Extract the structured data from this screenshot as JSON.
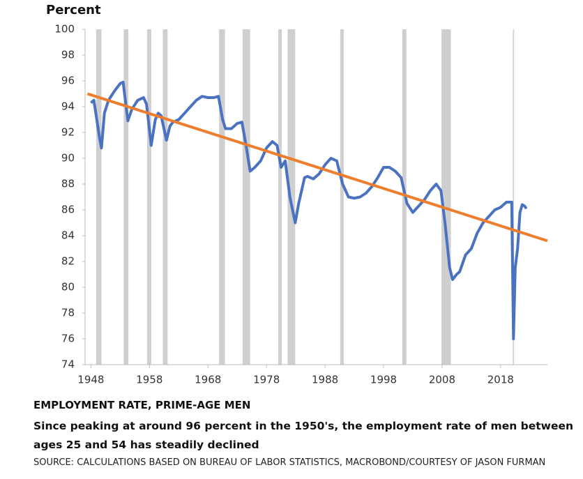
{
  "chart_data": {
    "type": "line",
    "y_axis_label": "Percent",
    "caption_title": "EMPLOYMENT RATE, PRIME-AGE MEN",
    "subtitle": "Since peaking at around 96 percent in the 1950's, the employment rate of men between ages 25 and 54 has steadily declined",
    "source": "SOURCE: CALCULATIONS BASED ON BUREAU OF LABOR STATISTICS, MACROBOND/COURTESY OF JASON FURMAN",
    "xlim": [
      1947,
      2026
    ],
    "ylim": [
      74,
      100
    ],
    "xticks": [
      1948,
      1958,
      1968,
      1978,
      1988,
      1998,
      2008,
      2018
    ],
    "yticks": [
      74,
      76,
      78,
      80,
      82,
      84,
      86,
      88,
      90,
      92,
      94,
      96,
      98,
      100
    ],
    "recession_color": "#cfcfcf",
    "recessions": [
      [
        1948.9,
        1949.8
      ],
      [
        1953.6,
        1954.4
      ],
      [
        1957.6,
        1958.3
      ],
      [
        1960.3,
        1961.1
      ],
      [
        1969.9,
        1970.9
      ],
      [
        1973.9,
        1975.2
      ],
      [
        1980.0,
        1980.6
      ],
      [
        1981.6,
        1982.9
      ],
      [
        1990.6,
        1991.2
      ],
      [
        2001.2,
        2001.9
      ],
      [
        2007.9,
        2009.5
      ],
      [
        2020.1,
        2020.3
      ]
    ],
    "series": [
      {
        "color": "#4a72c0",
        "x": [
          1948,
          1948.5,
          1949.5,
          1949.8,
          1950.3,
          1951,
          1952,
          1953,
          1953.5,
          1954.3,
          1955,
          1956,
          1957,
          1957.5,
          1958.3,
          1959,
          1959.5,
          1960,
          1960.9,
          1961.5,
          1962,
          1963,
          1964,
          1965,
          1966,
          1967,
          1968,
          1969,
          1969.8,
          1970.5,
          1971,
          1972,
          1973,
          1973.8,
          1974.5,
          1975.2,
          1976,
          1977,
          1978,
          1979,
          1979.8,
          1980.5,
          1981.2,
          1982,
          1982.9,
          1983.5,
          1984.5,
          1985,
          1986,
          1987,
          1988,
          1989,
          1990,
          1991,
          1992,
          1993,
          1994,
          1995,
          1996,
          1997,
          1998,
          1999,
          2000,
          2001,
          2002,
          2003,
          2004,
          2005,
          2006,
          2007,
          2007.8,
          2008.5,
          2009.3,
          2009.8,
          2010.5,
          2011,
          2012,
          2013,
          2014,
          2015,
          2016,
          2017,
          2018,
          2019,
          2019.9,
          2020.2,
          2020.5,
          2020.9,
          2021.3,
          2021.7,
          2022.1,
          2022.4
        ],
        "values": [
          94.3,
          94.5,
          91.5,
          90.8,
          93.5,
          94.5,
          95.2,
          95.8,
          95.9,
          92.9,
          93.8,
          94.5,
          94.7,
          94.2,
          91.0,
          93.0,
          93.5,
          93.3,
          91.4,
          92.5,
          92.8,
          93.0,
          93.5,
          94.0,
          94.5,
          94.8,
          94.7,
          94.7,
          94.8,
          93.0,
          92.3,
          92.3,
          92.7,
          92.8,
          91.0,
          89.0,
          89.3,
          89.8,
          90.8,
          91.3,
          91.0,
          89.3,
          89.8,
          87.0,
          85.0,
          86.5,
          88.5,
          88.6,
          88.4,
          88.8,
          89.5,
          90.0,
          89.8,
          88.0,
          87.0,
          86.9,
          87.0,
          87.3,
          87.8,
          88.5,
          89.3,
          89.3,
          89.0,
          88.5,
          86.5,
          85.8,
          86.3,
          86.8,
          87.5,
          88.0,
          87.5,
          85.0,
          81.5,
          80.6,
          81.0,
          81.2,
          82.5,
          83.0,
          84.2,
          85.0,
          85.5,
          86.0,
          86.2,
          86.6,
          86.6,
          76.0,
          81.5,
          83.0,
          85.8,
          86.4,
          86.3,
          86.1
        ]
      },
      {
        "color": "#ee7d2d",
        "x": [
          1947.4,
          2026
        ],
        "values": [
          95.0,
          83.6
        ]
      }
    ]
  }
}
